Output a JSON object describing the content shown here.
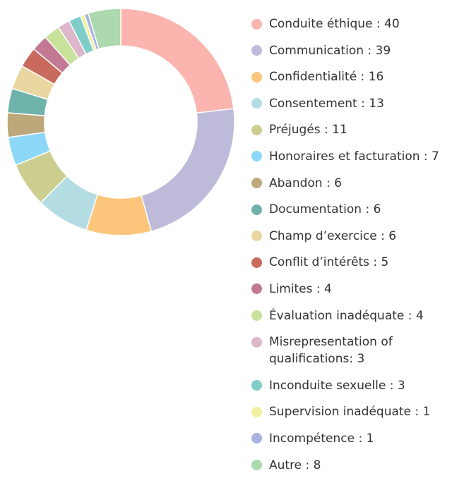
{
  "chart_data": {
    "type": "donut",
    "labels": [
      "Conduite éthique : 40",
      "Communication : 39",
      "Confidentialité : 16",
      "Consentement : 13",
      "Préjugés : 11",
      "Honoraires et facturation : 7",
      "Abandon : 6",
      "Documentation : 6",
      "Champ d’exercice : 6",
      "Conflit d’intérêts : 5",
      "Limites : 4",
      "Évaluation inadéquate : 4",
      "Misrepresentation of qualifications: 3",
      "Inconduite sexuelle : 3",
      "Supervision inadéquate : 1",
      "Incompétence : 1",
      "Autre : 8"
    ],
    "values": [
      40,
      39,
      16,
      13,
      11,
      7,
      6,
      6,
      6,
      5,
      4,
      4,
      3,
      3,
      1,
      1,
      8
    ],
    "colors": [
      "#fbb4ae",
      "#bebada",
      "#fbc57b",
      "#b3dde3",
      "#ccce8f",
      "#8dd8f8",
      "#bca87a",
      "#6fb2aa",
      "#ead6a0",
      "#c86b5e",
      "#c27a94",
      "#c8e29c",
      "#dcb6c9",
      "#7fcdc8",
      "#f0f0a0",
      "#a9b3e0",
      "#acd9ae"
    ]
  }
}
